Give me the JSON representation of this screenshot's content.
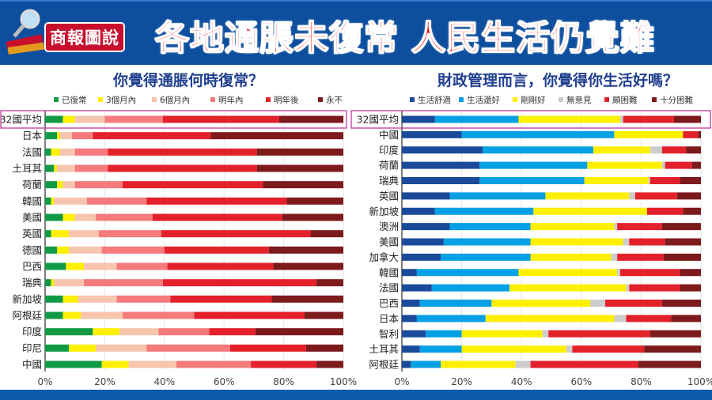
{
  "header": {
    "badge": "商報圖說",
    "title": "各地通脹未復常 人民生活仍覺難",
    "header_color": "#0d4f9e",
    "title_color": "#e8141c"
  },
  "chart_data": [
    {
      "type": "bar",
      "orientation": "horizontal",
      "stacked": "percent",
      "title": "你覺得通脹何時復常？",
      "categories": [
        "32國平均",
        "日本",
        "法國",
        "土耳其",
        "荷蘭",
        "韓國",
        "美國",
        "英國",
        "德國",
        "巴西",
        "瑞典",
        "新加坡",
        "阿根廷",
        "印度",
        "印尼",
        "中國"
      ],
      "highlight_category": "32國平均",
      "series": [
        {
          "name": "已復常",
          "color": "#119a45",
          "values": [
            6,
            4,
            2,
            3,
            4,
            2,
            6,
            2,
            4,
            7,
            2,
            6,
            6,
            16,
            8,
            19
          ]
        },
        {
          "name": "3個月內",
          "color": "#fff000",
          "values": [
            4,
            1,
            3,
            1,
            2,
            1,
            4,
            6,
            4,
            6,
            1,
            5,
            6,
            9,
            9,
            9
          ]
        },
        {
          "name": "6個月內",
          "color": "#f7c4ae",
          "values": [
            10,
            4,
            5,
            6,
            4,
            11,
            7,
            10,
            11,
            11,
            10,
            13,
            14,
            13,
            17,
            16
          ]
        },
        {
          "name": "明年內",
          "color": "#f47a7c",
          "values": [
            19.5,
            7,
            11,
            11,
            16,
            20,
            19,
            21,
            21,
            17,
            26.5,
            18,
            24,
            17,
            28,
            25
          ]
        },
        {
          "name": "明年後",
          "color": "#e3212b",
          "values": [
            39,
            39.5,
            50,
            50,
            47,
            47,
            43.5,
            50,
            35,
            35.5,
            51.5,
            34,
            37,
            15.5,
            25.5,
            22
          ]
        },
        {
          "name": "永不",
          "color": "#7d1a1c",
          "values": [
            21.5,
            44.5,
            29,
            29,
            27,
            19,
            20.5,
            11,
            25,
            23.5,
            9,
            24,
            13,
            29.5,
            12.5,
            9
          ]
        }
      ],
      "xlim": [
        0,
        100
      ],
      "xticks": [
        "0%",
        "20%",
        "40%",
        "60%",
        "80%",
        "100%"
      ],
      "grid": true,
      "legend": "top"
    },
    {
      "type": "bar",
      "orientation": "horizontal",
      "stacked": "percent",
      "title": "財政管理而言，你覺得你生活好嗎？",
      "categories": [
        "32國平均",
        "中國",
        "印度",
        "荷蘭",
        "瑞典",
        "英國",
        "新加坡",
        "澳洲",
        "美國",
        "加拿大",
        "韓國",
        "法國",
        "巴西",
        "日本",
        "智利",
        "土耳其",
        "阿根廷"
      ],
      "highlight_category": "32國平均",
      "series": [
        {
          "name": "生活舒適",
          "color": "#1a4a9a",
          "values": [
            11,
            20,
            27,
            26,
            26,
            16,
            11,
            16,
            14,
            13,
            5,
            10,
            6,
            5,
            8,
            6,
            3
          ]
        },
        {
          "name": "生活還好",
          "color": "#06a0e4",
          "values": [
            28,
            51,
            37,
            36,
            35,
            32,
            33,
            27,
            29,
            30,
            34,
            26,
            24,
            23,
            12,
            14,
            10
          ]
        },
        {
          "name": "剛剛好",
          "color": "#fff000",
          "values": [
            34,
            23,
            19,
            25,
            21.5,
            28,
            38,
            28,
            31,
            27,
            33,
            39,
            33,
            43,
            27,
            35,
            25
          ]
        },
        {
          "name": "無意見",
          "color": "#cccccc",
          "values": [
            1,
            0,
            4,
            1,
            0.5,
            2,
            0,
            1,
            2,
            2,
            1,
            1,
            5,
            4,
            2,
            2,
            5
          ]
        },
        {
          "name": "頗困難",
          "color": "#e3212b",
          "values": [
            17,
            5,
            8,
            9,
            10,
            14,
            12,
            15,
            12,
            15.5,
            20,
            17,
            19,
            15,
            34,
            24,
            36
          ]
        },
        {
          "name": "十分困難",
          "color": "#7d1a1c",
          "values": [
            9,
            1,
            5,
            3,
            7,
            8,
            6,
            13,
            12,
            12.5,
            7,
            7,
            13,
            10,
            17,
            19,
            21
          ]
        }
      ],
      "xlim": [
        0,
        100
      ],
      "xticks": [
        "0%",
        "20%",
        "40%",
        "60%",
        "80%",
        "100%"
      ],
      "grid": true,
      "legend": "top"
    }
  ]
}
